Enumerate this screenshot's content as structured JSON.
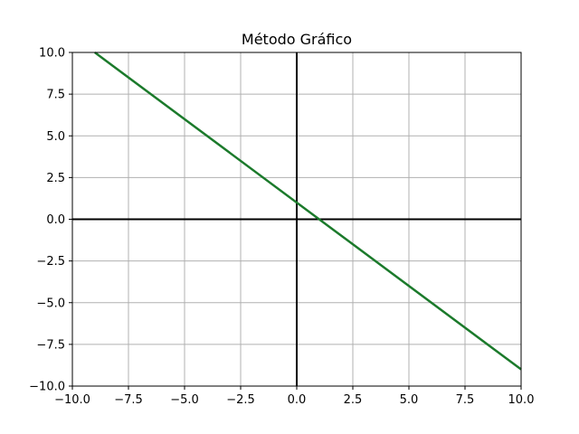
{
  "chart_data": {
    "type": "line",
    "title": "Método Gráfico",
    "xlabel": "",
    "ylabel": "",
    "xlim": [
      -10,
      10
    ],
    "ylim": [
      -10,
      10
    ],
    "x_ticks": [
      -10,
      -7.5,
      -5,
      -2.5,
      0,
      2.5,
      5,
      7.5,
      10
    ],
    "x_tick_labels": [
      "−10.0",
      "−7.5",
      "−5.0",
      "−2.5",
      "0.0",
      "2.5",
      "5.0",
      "7.5",
      "10.0"
    ],
    "y_ticks": [
      10,
      7.5,
      5,
      2.5,
      0,
      -2.5,
      -5,
      -7.5,
      -10
    ],
    "y_tick_labels": [
      "10.0",
      "7.5",
      "5.0",
      "2.5",
      "0.0",
      "−2.5",
      "−5.0",
      "−7.5",
      "−10.0"
    ],
    "grid": true,
    "axes_lines": true,
    "series": [
      {
        "x": [
          -9,
          10
        ],
        "y": [
          10,
          -9
        ],
        "color": "#1b7a2b"
      }
    ],
    "colors": {
      "grid": "#b0b0b0",
      "axis_line": "#000000",
      "frame": "#000000"
    }
  }
}
